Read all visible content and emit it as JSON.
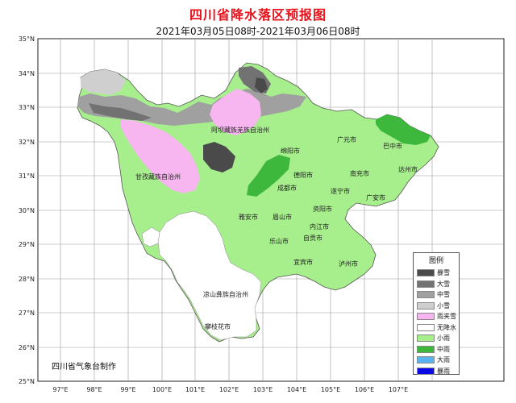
{
  "title": "四川省降水落区预报图",
  "subtitle": "2021年03月05日08时-2021年03月06日08时",
  "credit": "四川省气象台制作",
  "lat_labels": [
    "35°N",
    "34°N",
    "33°N",
    "32°N",
    "31°N",
    "30°N",
    "29°N",
    "28°N",
    "27°N",
    "26°N",
    "25°N"
  ],
  "lon_labels": [
    "97°E",
    "98°E",
    "99°E",
    "100°E",
    "101°E",
    "102°E",
    "103°E",
    "104°E",
    "105°E",
    "106°E",
    "107°E"
  ],
  "legend": {
    "title": "图例",
    "items": [
      {
        "label": "暴雪",
        "color": "#4a4a4a"
      },
      {
        "label": "大雪",
        "color": "#727272"
      },
      {
        "label": "中雪",
        "color": "#a0a0a0"
      },
      {
        "label": "小雪",
        "color": "#cfcfcf"
      },
      {
        "label": "雨夹雪",
        "color": "#f7b6ef"
      },
      {
        "label": "无降水",
        "color": "#ffffff"
      },
      {
        "label": "小雨",
        "color": "#a6ef8c"
      },
      {
        "label": "中雨",
        "color": "#3db83d"
      },
      {
        "label": "大雨",
        "color": "#5ab4f0"
      },
      {
        "label": "暴雨",
        "color": "#0a0ae6"
      }
    ]
  },
  "cities": {
    "guangyuan": "广元市",
    "bazhong": "巴中市",
    "mianyang": "绵阳市",
    "aba": "阿坝藏族羌族自治州",
    "ganzi": "甘孜藏族自治州",
    "deyang": "德阳市",
    "nanchong": "南充市",
    "dazhou": "达州市",
    "chengdu": "成都市",
    "suining": "遂宁市",
    "guangan": "广安市",
    "ziyang": "资阳市",
    "yaan": "雅安市",
    "meishan": "眉山市",
    "neijiang": "内江市",
    "leshan": "乐山市",
    "zigong": "自贡市",
    "yibin": "宜宾市",
    "luzhou": "泸州市",
    "liangshan": "凉山彝族自治州",
    "panzhihua": "攀枝花市"
  }
}
